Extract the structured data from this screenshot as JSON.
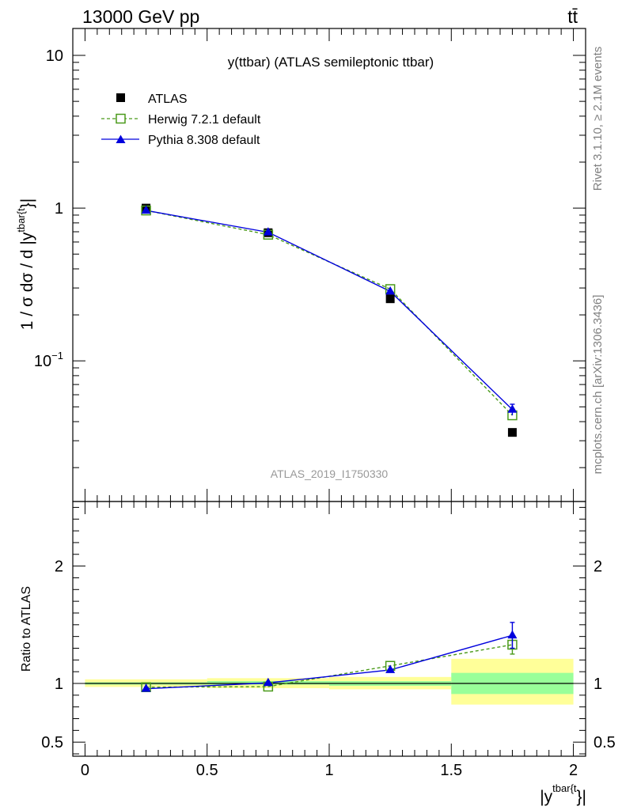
{
  "header": {
    "energy_label": "13000 GeV pp",
    "process_label": "tt̄"
  },
  "main_plot": {
    "title": "y(ttbar) (ATLAS semileptonic ttbar)",
    "analysis_label": "ATLAS_2019_I1750330",
    "ylabel": "1 / σ dσ / d |y",
    "ylabel_sup": "tbar{t",
    "ylabel_close": "}|",
    "yticks": [
      {
        "value": 0.1,
        "base": "10",
        "exp": "−1"
      },
      {
        "value": 1,
        "base": "1",
        "exp": ""
      },
      {
        "value": 10,
        "base": "10",
        "exp": ""
      }
    ],
    "legend": [
      {
        "key": "atlas",
        "label": "ATLAS"
      },
      {
        "key": "herwig",
        "label": "Herwig 7.2.1 default"
      },
      {
        "key": "pythia",
        "label": "Pythia 8.308 default"
      }
    ]
  },
  "ratio_plot": {
    "ylabel": "Ratio to ATLAS",
    "yticks": [
      {
        "value": 0.5,
        "label": "0.5"
      },
      {
        "value": 1,
        "label": "1"
      },
      {
        "value": 2,
        "label": "2"
      }
    ]
  },
  "xaxis": {
    "xlabel": "|y",
    "xlabel_sup": "tbar{t",
    "xlabel_close": "}|",
    "xticks": [
      {
        "value": 0,
        "label": "0"
      },
      {
        "value": 0.5,
        "label": "0.5"
      },
      {
        "value": 1,
        "label": "1"
      },
      {
        "value": 1.5,
        "label": "1.5"
      },
      {
        "value": 2,
        "label": "2"
      }
    ]
  },
  "side_labels": {
    "rivet": "Rivet 3.1.10, ≥ 2.1M events",
    "mcplots": "mcplots.cern.ch [arXiv:1306.3436]"
  },
  "colors": {
    "atlas": "#000000",
    "herwig": "#4a9a1a",
    "pythia": "#0000dd",
    "band_inner": "#99ff99",
    "band_outer": "#ffff99"
  },
  "chart_data": [
    {
      "type": "line",
      "panel": "main",
      "yscale": "log",
      "xlim": [
        -0.05,
        2.05
      ],
      "ylim": [
        0.012,
        15
      ],
      "x": [
        0.25,
        0.75,
        1.25,
        1.75
      ],
      "xbins": [
        [
          0,
          0.5
        ],
        [
          0.5,
          1.0
        ],
        [
          1.0,
          1.5
        ],
        [
          1.5,
          2.0
        ]
      ],
      "series": [
        {
          "key": "atlas",
          "name": "ATLAS",
          "values": [
            1.0,
            0.69,
            0.255,
            0.034
          ]
        },
        {
          "key": "herwig",
          "name": "Herwig 7.2.1 default",
          "values": [
            0.965,
            0.67,
            0.295,
            0.044
          ]
        },
        {
          "key": "pythia",
          "name": "Pythia 8.308 default",
          "values": [
            0.965,
            0.695,
            0.285,
            0.048
          ],
          "errors": [
            0,
            0,
            0,
            0.004
          ]
        }
      ]
    },
    {
      "type": "line",
      "panel": "ratio",
      "xlim": [
        -0.05,
        2.05
      ],
      "ylim": [
        0.38,
        2.55
      ],
      "x": [
        0.25,
        0.75,
        1.25,
        1.75
      ],
      "bands": {
        "xbins": [
          [
            0,
            0.5
          ],
          [
            0.5,
            1.0
          ],
          [
            1.0,
            1.5
          ],
          [
            1.5,
            2.0
          ]
        ],
        "inner": [
          [
            0.99,
            1.01
          ],
          [
            0.99,
            1.02
          ],
          [
            0.98,
            1.02
          ],
          [
            0.91,
            1.09
          ]
        ],
        "outer": [
          [
            0.97,
            1.035
          ],
          [
            0.96,
            1.045
          ],
          [
            0.95,
            1.055
          ],
          [
            0.82,
            1.21
          ]
        ]
      },
      "series": [
        {
          "key": "herwig",
          "name": "Herwig 7.2.1 default",
          "values": [
            0.968,
            0.973,
            1.15,
            1.33
          ],
          "errors": [
            0,
            0,
            0,
            0.08
          ]
        },
        {
          "key": "pythia",
          "name": "Pythia 8.308 default",
          "values": [
            0.955,
            1.005,
            1.115,
            1.41
          ],
          "errors": [
            0,
            0,
            0,
            0.11
          ]
        }
      ]
    }
  ]
}
